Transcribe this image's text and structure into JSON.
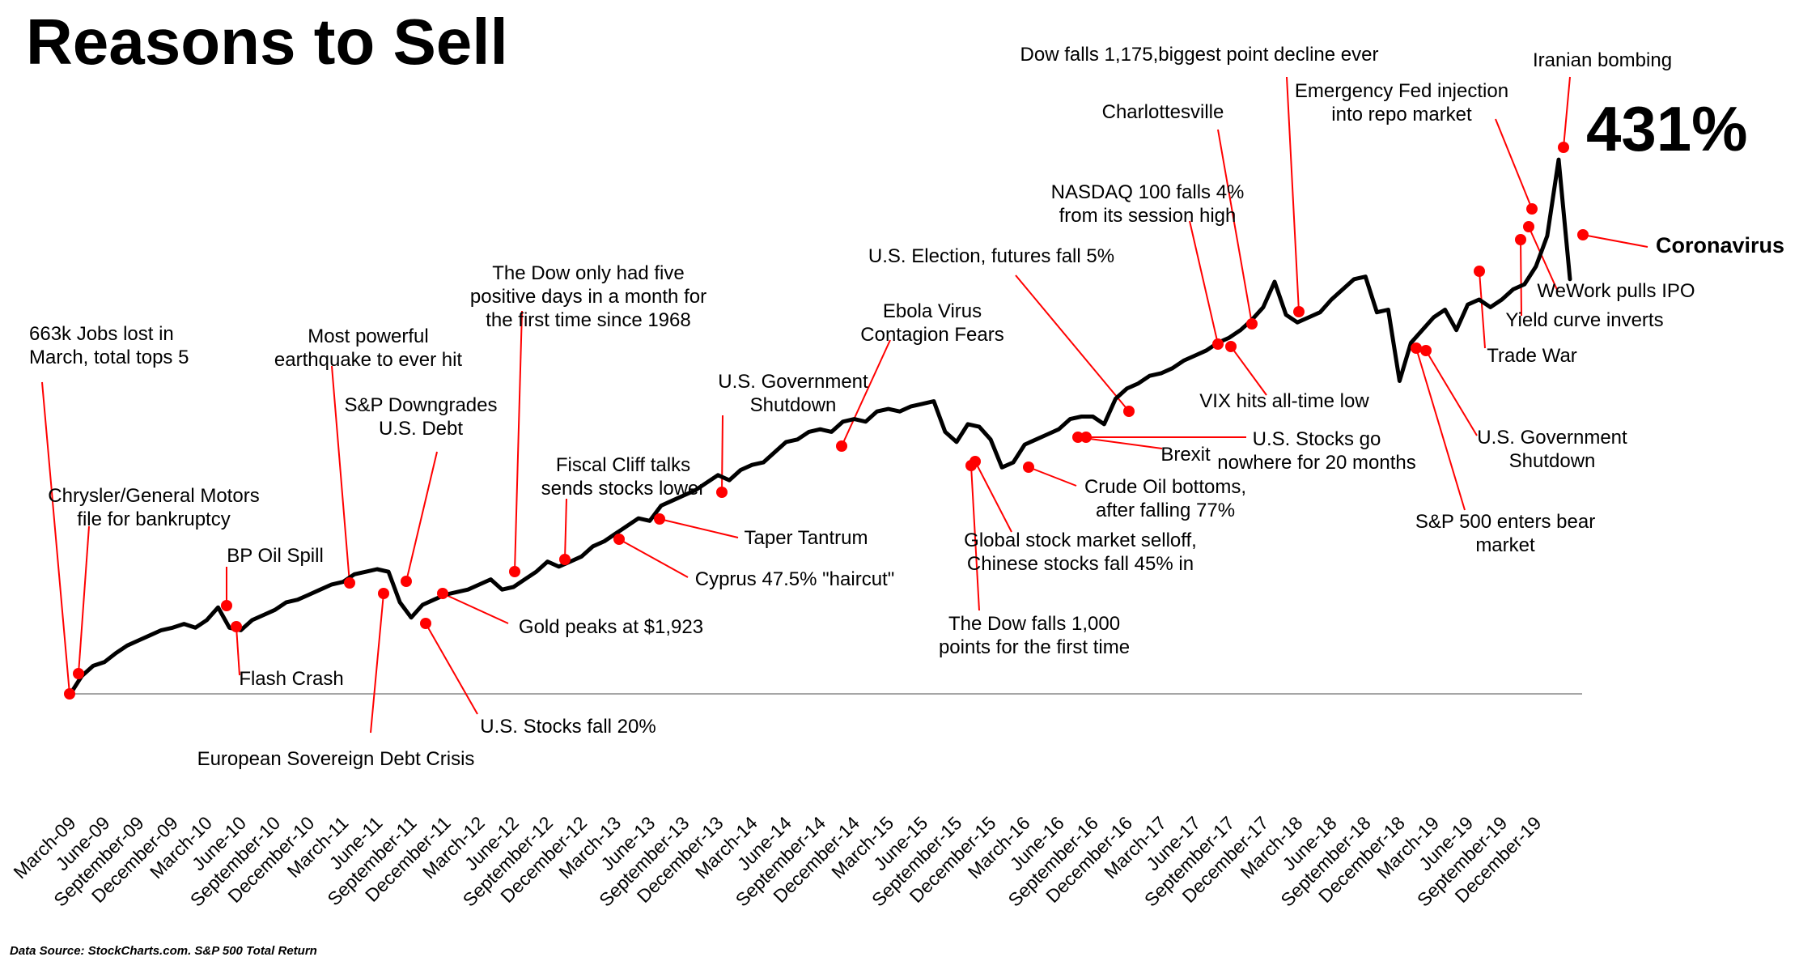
{
  "title": "Reasons to Sell",
  "total_return_label": "431%",
  "source_note": "Data Source: StockCharts.com. S&P 500 Total Return",
  "colors": {
    "line": "#000000",
    "marker": "#ff0000",
    "leader": "#ff0000",
    "baseline": "#a6a6a6"
  },
  "chart_data": {
    "type": "line",
    "title": "Reasons to Sell",
    "xlabel": "",
    "ylabel": "",
    "ylim": [
      0,
      450
    ],
    "grid": false,
    "x_tick_labels": [
      "March-09",
      "June-09",
      "September-09",
      "December-09",
      "March-10",
      "June-10",
      "September-10",
      "December-10",
      "March-11",
      "June-11",
      "September-11",
      "December-11",
      "March-12",
      "June-12",
      "September-12",
      "December-12",
      "March-13",
      "June-13",
      "September-13",
      "December-13",
      "March-14",
      "June-14",
      "September-14",
      "December-14",
      "March-15",
      "June-15",
      "September-15",
      "December-15",
      "March-16",
      "June-16",
      "September-16",
      "December-16",
      "March-17",
      "June-17",
      "September-17",
      "December-17",
      "March-18",
      "June-18",
      "September-18",
      "December-18",
      "March-19",
      "June-19",
      "September-19",
      "December-19"
    ],
    "series": [
      {
        "values_note": "Cumulative S&P 500 total return (%) from March 2009, monthly; final point March 2020",
        "x": [
          "2009-03",
          "2009-04",
          "2009-05",
          "2009-06",
          "2009-07",
          "2009-08",
          "2009-09",
          "2009-10",
          "2009-11",
          "2009-12",
          "2010-01",
          "2010-02",
          "2010-03",
          "2010-04",
          "2010-05",
          "2010-06",
          "2010-07",
          "2010-08",
          "2010-09",
          "2010-10",
          "2010-11",
          "2010-12",
          "2011-01",
          "2011-02",
          "2011-03",
          "2011-04",
          "2011-05",
          "2011-06",
          "2011-07",
          "2011-08",
          "2011-09",
          "2011-10",
          "2011-11",
          "2011-12",
          "2012-01",
          "2012-02",
          "2012-03",
          "2012-04",
          "2012-05",
          "2012-06",
          "2012-07",
          "2012-08",
          "2012-09",
          "2012-10",
          "2012-11",
          "2012-12",
          "2013-01",
          "2013-02",
          "2013-03",
          "2013-04",
          "2013-05",
          "2013-06",
          "2013-07",
          "2013-08",
          "2013-09",
          "2013-10",
          "2013-11",
          "2013-12",
          "2014-01",
          "2014-02",
          "2014-03",
          "2014-04",
          "2014-05",
          "2014-06",
          "2014-07",
          "2014-08",
          "2014-09",
          "2014-10",
          "2014-11",
          "2014-12",
          "2015-01",
          "2015-02",
          "2015-03",
          "2015-04",
          "2015-05",
          "2015-06",
          "2015-07",
          "2015-08",
          "2015-09",
          "2015-10",
          "2015-11",
          "2015-12",
          "2016-01",
          "2016-02",
          "2016-03",
          "2016-04",
          "2016-05",
          "2016-06",
          "2016-07",
          "2016-08",
          "2016-09",
          "2016-10",
          "2016-11",
          "2016-12",
          "2017-01",
          "2017-02",
          "2017-03",
          "2017-04",
          "2017-05",
          "2017-06",
          "2017-07",
          "2017-08",
          "2017-09",
          "2017-10",
          "2017-11",
          "2017-12",
          "2018-01",
          "2018-02",
          "2018-03",
          "2018-04",
          "2018-05",
          "2018-06",
          "2018-07",
          "2018-08",
          "2018-09",
          "2018-10",
          "2018-11",
          "2018-12",
          "2019-01",
          "2019-02",
          "2019-03",
          "2019-04",
          "2019-05",
          "2019-06",
          "2019-07",
          "2019-08",
          "2019-09",
          "2019-10",
          "2019-11",
          "2019-12",
          "2020-01",
          "2020-02",
          "2020-03"
        ],
        "values": [
          0,
          14,
          22,
          25,
          32,
          38,
          42,
          46,
          50,
          52,
          55,
          52,
          58,
          68,
          52,
          50,
          58,
          62,
          66,
          72,
          74,
          78,
          82,
          86,
          88,
          94,
          96,
          98,
          96,
          72,
          60,
          70,
          74,
          78,
          80,
          82,
          86,
          90,
          82,
          84,
          90,
          96,
          104,
          100,
          104,
          108,
          116,
          120,
          126,
          132,
          138,
          136,
          148,
          152,
          156,
          160,
          166,
          172,
          168,
          176,
          180,
          182,
          190,
          198,
          200,
          206,
          208,
          206,
          214,
          216,
          214,
          222,
          224,
          222,
          226,
          228,
          230,
          206,
          198,
          212,
          210,
          200,
          178,
          182,
          196,
          200,
          204,
          208,
          216,
          218,
          218,
          212,
          232,
          240,
          244,
          250,
          252,
          256,
          262,
          266,
          270,
          276,
          280,
          286,
          294,
          304,
          324,
          298,
          292,
          296,
          300,
          310,
          318,
          326,
          328,
          300,
          302,
          246,
          276,
          286,
          296,
          302,
          286,
          306,
          310,
          304,
          310,
          318,
          322,
          336,
          360,
          420,
          326
        ]
      }
    ],
    "annotations": [
      {
        "label": "663k Jobs lost in March, total tops 5",
        "date": "2009-03"
      },
      {
        "label": "Chrysler/General Motors file for bankruptcy",
        "date": "2009-06"
      },
      {
        "label": "BP Oil Spill",
        "date": "2010-04"
      },
      {
        "label": "Flash Crash",
        "date": "2010-05"
      },
      {
        "label": "Most powerful earthquake to ever hit",
        "date": "2011-03"
      },
      {
        "label": "European Sovereign Debt Crisis",
        "date": "2011-06"
      },
      {
        "label": "S&P Downgrades U.S. Debt",
        "date": "2011-08"
      },
      {
        "label": "U.S. Stocks fall 20%",
        "date": "2011-09"
      },
      {
        "label": "Gold peaks at $1,923",
        "date": "2011-10"
      },
      {
        "label": "The Dow only had five positive days in a month for the first time since 1968",
        "date": "2012-05"
      },
      {
        "label": "Fiscal Cliff talks sends stocks lower",
        "date": "2012-11"
      },
      {
        "label": "Cyprus 47.5% \"haircut\"",
        "date": "2013-03"
      },
      {
        "label": "Taper Tantrum",
        "date": "2013-06"
      },
      {
        "label": "U.S. Government Shutdown",
        "date": "2013-10"
      },
      {
        "label": "Ebola Virus Contagion Fears",
        "date": "2014-10"
      },
      {
        "label": "The Dow falls 1,000 points for the first time",
        "date": "2015-08"
      },
      {
        "label": "Global stock market selloff, Chinese stocks fall 45% in",
        "date": "2015-09"
      },
      {
        "label": "Crude Oil bottoms, after falling 77%",
        "date": "2016-02"
      },
      {
        "label": "Brexit",
        "date": "2016-06"
      },
      {
        "label": "U.S. Stocks go nowhere for 20 months",
        "date": "2016-06"
      },
      {
        "label": "U.S. Election, futures fall 5%",
        "date": "2016-11"
      },
      {
        "label": "NASDAQ 100 falls 4% from its session high",
        "date": "2017-06"
      },
      {
        "label": "VIX hits all-time low",
        "date": "2017-07"
      },
      {
        "label": "Charlottesville",
        "date": "2017-08"
      },
      {
        "label": "Dow falls 1,175,biggest point decline ever",
        "date": "2018-02"
      },
      {
        "label": "S&P 500 enters bear market",
        "date": "2018-12"
      },
      {
        "label": "U.S. Government Shutdown",
        "date": "2019-01"
      },
      {
        "label": "Trade War",
        "date": "2019-05"
      },
      {
        "label": "Yield curve inverts",
        "date": "2019-08"
      },
      {
        "label": "WeWork pulls IPO",
        "date": "2019-09"
      },
      {
        "label": "Emergency Fed injection into repo market",
        "date": "2019-09"
      },
      {
        "label": "Iranian bombing",
        "date": "2020-01"
      },
      {
        "label": "Coronavirus",
        "date": "2020-03"
      }
    ]
  }
}
